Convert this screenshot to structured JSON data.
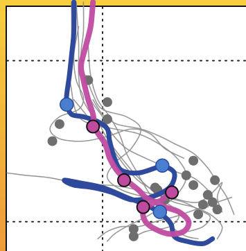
{
  "chart_data": {
    "type": "line",
    "title": "",
    "xlabel": "",
    "ylabel": "",
    "grid": true,
    "gridlines": {
      "x": [
        0.4
      ],
      "y": [
        0.78,
        0.12
      ]
    },
    "xlim": [
      0,
      1
    ],
    "ylim": [
      0,
      1
    ],
    "colors": {
      "background_trajectories": "#8e8e8e",
      "background_markers": "#6e6e6e",
      "blue_series": "#2f4a9c",
      "blue_markers": "#4a7fd0",
      "magenta_series": "#c04aa0",
      "magenta_markers": "#c04aa0",
      "grid": "#222222",
      "frame": "#f2b23a"
    },
    "background_trajectories": [
      [
        [
          0.27,
          1.02
        ],
        [
          0.27,
          0.86
        ],
        [
          0.26,
          0.74
        ],
        [
          0.27,
          0.66
        ],
        [
          0.28,
          0.6
        ],
        [
          0.3,
          0.55
        ],
        [
          0.35,
          0.52
        ],
        [
          0.45,
          0.5
        ],
        [
          0.55,
          0.48
        ],
        [
          0.65,
          0.43
        ],
        [
          0.72,
          0.37
        ],
        [
          0.75,
          0.3
        ],
        [
          0.7,
          0.22
        ],
        [
          0.6,
          0.15
        ],
        [
          0.5,
          0.1
        ],
        [
          0.45,
          0.07
        ],
        [
          0.42,
          0.04
        ]
      ],
      [
        [
          0.29,
          1.02
        ],
        [
          0.3,
          0.85
        ],
        [
          0.3,
          0.72
        ],
        [
          0.31,
          0.64
        ],
        [
          0.34,
          0.58
        ],
        [
          0.38,
          0.53
        ],
        [
          0.42,
          0.46
        ],
        [
          0.48,
          0.38
        ],
        [
          0.55,
          0.3
        ],
        [
          0.62,
          0.24
        ],
        [
          0.7,
          0.2
        ],
        [
          0.78,
          0.18
        ],
        [
          0.85,
          0.15
        ],
        [
          0.9,
          0.1
        ],
        [
          0.88,
          0.05
        ]
      ],
      [
        [
          0.32,
          1.02
        ],
        [
          0.32,
          0.9
        ],
        [
          0.31,
          0.8
        ],
        [
          0.33,
          0.7
        ],
        [
          0.35,
          0.62
        ],
        [
          0.4,
          0.55
        ],
        [
          0.44,
          0.48
        ],
        [
          0.5,
          0.42
        ],
        [
          0.58,
          0.38
        ],
        [
          0.65,
          0.35
        ],
        [
          0.72,
          0.32
        ],
        [
          0.78,
          0.3
        ],
        [
          0.83,
          0.26
        ],
        [
          0.86,
          0.22
        ],
        [
          0.84,
          0.18
        ]
      ],
      [
        [
          0.3,
          0.92
        ],
        [
          0.28,
          0.8
        ],
        [
          0.29,
          0.7
        ],
        [
          0.32,
          0.63
        ],
        [
          0.3,
          0.58
        ],
        [
          0.22,
          0.55
        ],
        [
          0.18,
          0.5
        ],
        [
          0.22,
          0.46
        ],
        [
          0.32,
          0.45
        ],
        [
          0.42,
          0.47
        ],
        [
          0.52,
          0.5
        ],
        [
          0.6,
          0.48
        ],
        [
          0.66,
          0.42
        ],
        [
          0.74,
          0.38
        ]
      ],
      [
        [
          0.33,
          0.72
        ],
        [
          0.36,
          0.64
        ],
        [
          0.4,
          0.58
        ],
        [
          0.5,
          0.55
        ],
        [
          0.56,
          0.5
        ],
        [
          0.52,
          0.42
        ],
        [
          0.45,
          0.36
        ],
        [
          0.42,
          0.3
        ],
        [
          0.48,
          0.25
        ],
        [
          0.58,
          0.22
        ],
        [
          0.66,
          0.2
        ],
        [
          0.72,
          0.15
        ],
        [
          0.68,
          0.1
        ],
        [
          0.58,
          0.08
        ],
        [
          0.52,
          0.05
        ]
      ],
      [
        [
          0.0,
          0.32
        ],
        [
          0.08,
          0.31
        ],
        [
          0.18,
          0.3
        ],
        [
          0.28,
          0.28
        ],
        [
          0.35,
          0.27
        ],
        [
          0.42,
          0.27
        ],
        [
          0.5,
          0.26
        ],
        [
          0.58,
          0.24
        ],
        [
          0.66,
          0.22
        ],
        [
          0.74,
          0.2
        ],
        [
          0.8,
          0.17
        ],
        [
          0.85,
          0.14
        ],
        [
          0.82,
          0.1
        ],
        [
          0.76,
          0.08
        ]
      ],
      [
        [
          0.28,
          0.62
        ],
        [
          0.33,
          0.56
        ],
        [
          0.38,
          0.5
        ],
        [
          0.44,
          0.42
        ],
        [
          0.5,
          0.34
        ],
        [
          0.56,
          0.28
        ],
        [
          0.64,
          0.24
        ],
        [
          0.72,
          0.21
        ],
        [
          0.8,
          0.2
        ],
        [
          0.86,
          0.24
        ],
        [
          0.9,
          0.28
        ],
        [
          0.88,
          0.22
        ],
        [
          0.9,
          0.16
        ]
      ],
      [
        [
          0.34,
          0.84
        ],
        [
          0.35,
          0.72
        ],
        [
          0.38,
          0.62
        ],
        [
          0.43,
          0.55
        ],
        [
          0.47,
          0.48
        ],
        [
          0.5,
          0.4
        ],
        [
          0.54,
          0.33
        ],
        [
          0.58,
          0.26
        ],
        [
          0.62,
          0.2
        ],
        [
          0.66,
          0.13
        ],
        [
          0.7,
          0.09
        ],
        [
          0.75,
          0.06
        ],
        [
          0.8,
          0.05
        ]
      ],
      [
        [
          0.36,
          0.62
        ],
        [
          0.4,
          0.56
        ],
        [
          0.46,
          0.52
        ],
        [
          0.56,
          0.5
        ],
        [
          0.64,
          0.47
        ],
        [
          0.7,
          0.44
        ],
        [
          0.78,
          0.4
        ],
        [
          0.84,
          0.34
        ],
        [
          0.88,
          0.28
        ],
        [
          0.92,
          0.22
        ],
        [
          0.95,
          0.15
        ]
      ],
      [
        [
          0.38,
          0.05
        ],
        [
          0.42,
          0.08
        ],
        [
          0.48,
          0.1
        ],
        [
          0.55,
          0.1
        ],
        [
          0.62,
          0.12
        ],
        [
          0.7,
          0.14
        ],
        [
          0.76,
          0.16
        ],
        [
          0.82,
          0.18
        ],
        [
          0.88,
          0.2
        ],
        [
          0.94,
          0.22
        ]
      ]
    ],
    "background_markers": [
      [
        0.34,
        0.7
      ],
      [
        0.42,
        0.61
      ],
      [
        0.22,
        0.52
      ],
      [
        0.19,
        0.45
      ],
      [
        0.42,
        0.54
      ],
      [
        0.78,
        0.37
      ],
      [
        0.75,
        0.31
      ],
      [
        0.78,
        0.27
      ],
      [
        0.87,
        0.29
      ],
      [
        0.84,
        0.23
      ],
      [
        0.86,
        0.2
      ],
      [
        0.82,
        0.19
      ],
      [
        0.88,
        0.17
      ],
      [
        0.8,
        0.15
      ],
      [
        0.63,
        0.25
      ],
      [
        0.66,
        0.21
      ],
      [
        0.53,
        0.09
      ],
      [
        0.53,
        0.06
      ],
      [
        0.62,
        0.26
      ]
    ],
    "series": [
      {
        "name": "",
        "color_key": "blue_series",
        "points": [
          [
            0.28,
            1.02
          ],
          [
            0.28,
            0.9
          ],
          [
            0.27,
            0.8
          ],
          [
            0.26,
            0.71
          ],
          [
            0.25,
            0.64
          ],
          [
            0.25,
            0.6
          ],
          [
            0.27,
            0.56
          ],
          [
            0.32,
            0.55
          ],
          [
            0.38,
            0.53
          ],
          [
            0.42,
            0.5
          ],
          [
            0.43,
            0.45
          ],
          [
            0.45,
            0.38
          ],
          [
            0.48,
            0.33
          ],
          [
            0.55,
            0.32
          ],
          [
            0.62,
            0.34
          ],
          [
            0.65,
            0.35
          ],
          [
            0.7,
            0.32
          ],
          [
            0.68,
            0.26
          ],
          [
            0.6,
            0.22
          ],
          [
            0.52,
            0.21
          ],
          [
            0.44,
            0.24
          ],
          [
            0.36,
            0.26
          ],
          [
            0.28,
            0.27
          ],
          [
            0.24,
            0.29
          ],
          [
            0.3,
            0.28
          ],
          [
            0.4,
            0.26
          ],
          [
            0.5,
            0.22
          ],
          [
            0.6,
            0.18
          ],
          [
            0.68,
            0.12
          ],
          [
            0.7,
            0.06
          ],
          [
            0.75,
            0.04
          ],
          [
            0.82,
            0.03
          ],
          [
            0.86,
            0.05
          ]
        ],
        "markers": [
          [
            0.25,
            0.6
          ],
          [
            0.65,
            0.35
          ],
          [
            0.64,
            0.16
          ]
        ]
      },
      {
        "name": "",
        "color_key": "magenta_series",
        "points": [
          [
            0.36,
            1.02
          ],
          [
            0.35,
            0.92
          ],
          [
            0.33,
            0.84
          ],
          [
            0.31,
            0.76
          ],
          [
            0.32,
            0.7
          ],
          [
            0.34,
            0.62
          ],
          [
            0.36,
            0.56
          ],
          [
            0.37,
            0.5
          ],
          [
            0.41,
            0.44
          ],
          [
            0.43,
            0.38
          ],
          [
            0.46,
            0.33
          ],
          [
            0.5,
            0.29
          ],
          [
            0.55,
            0.25
          ],
          [
            0.58,
            0.22
          ],
          [
            0.62,
            0.2
          ],
          [
            0.66,
            0.18
          ],
          [
            0.72,
            0.16
          ],
          [
            0.76,
            0.12
          ],
          [
            0.74,
            0.08
          ],
          [
            0.68,
            0.07
          ],
          [
            0.62,
            0.09
          ],
          [
            0.58,
            0.12
          ],
          [
            0.57,
            0.16
          ],
          [
            0.6,
            0.19
          ],
          [
            0.65,
            0.21
          ],
          [
            0.68,
            0.24
          ]
        ],
        "markers": [
          [
            0.36,
            0.51
          ],
          [
            0.49,
            0.29
          ],
          [
            0.57,
            0.18
          ],
          [
            0.69,
            0.24
          ]
        ]
      }
    ]
  }
}
